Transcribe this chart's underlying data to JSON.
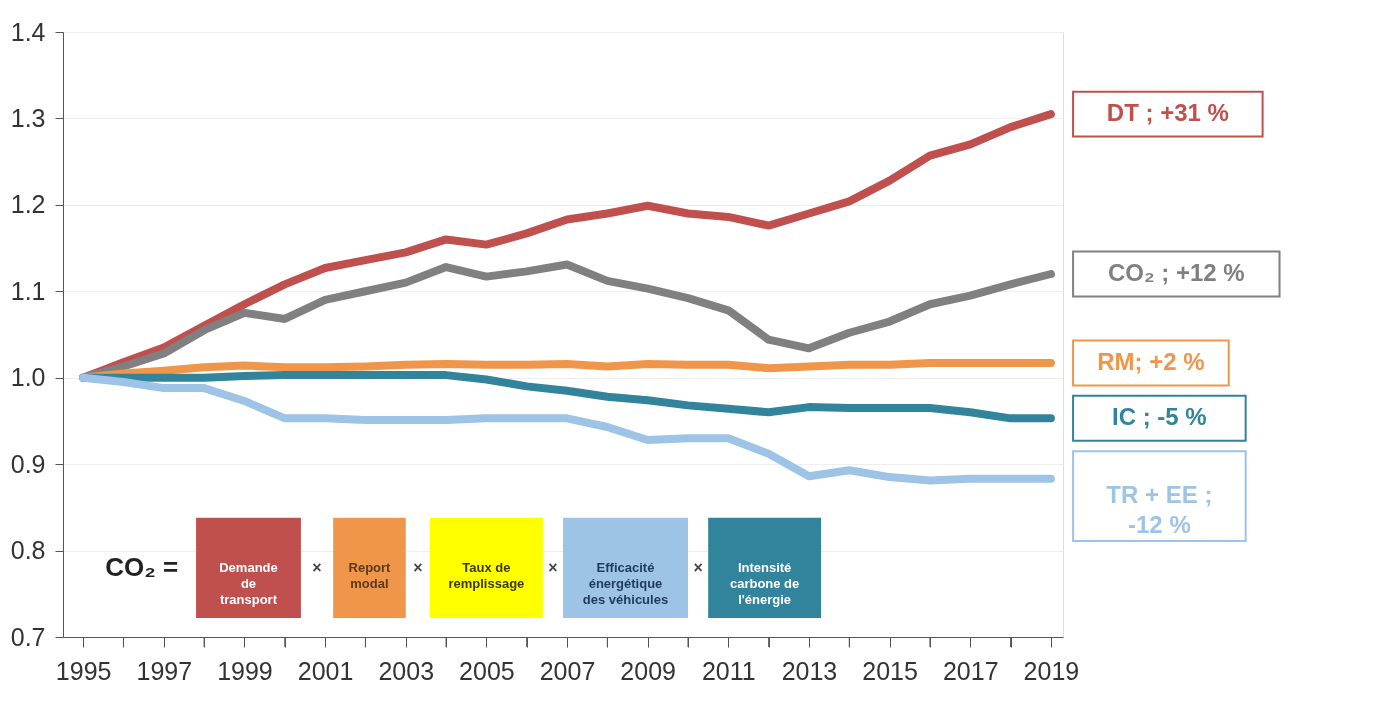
{
  "chart_data": {
    "type": "line",
    "x": [
      1995,
      1996,
      1997,
      1998,
      1999,
      2000,
      2001,
      2002,
      2003,
      2004,
      2005,
      2006,
      2007,
      2008,
      2009,
      2010,
      2011,
      2012,
      2013,
      2014,
      2015,
      2016,
      2017,
      2018,
      2019
    ],
    "series": [
      {
        "name": "DT ; +31 %",
        "color": "#c0504d",
        "values": [
          1.0,
          1.018,
          1.035,
          1.06,
          1.085,
          1.108,
          1.127,
          1.136,
          1.145,
          1.16,
          1.154,
          1.167,
          1.183,
          1.19,
          1.199,
          1.19,
          1.186,
          1.176,
          1.19,
          1.204,
          1.228,
          1.257,
          1.27,
          1.29,
          1.305
        ]
      },
      {
        "name": "CO₂ ; +12 %",
        "color": "#808080",
        "values": [
          1.0,
          1.013,
          1.028,
          1.055,
          1.075,
          1.068,
          1.09,
          1.1,
          1.11,
          1.128,
          1.117,
          1.123,
          1.131,
          1.112,
          1.103,
          1.092,
          1.078,
          1.044,
          1.034,
          1.052,
          1.065,
          1.085,
          1.095,
          1.108,
          1.12
        ]
      },
      {
        "name": "RM; +2 %",
        "color": "#f0964a",
        "values": [
          1.0,
          1.005,
          1.008,
          1.012,
          1.014,
          1.012,
          1.012,
          1.013,
          1.015,
          1.016,
          1.015,
          1.015,
          1.016,
          1.013,
          1.016,
          1.015,
          1.015,
          1.011,
          1.013,
          1.015,
          1.015,
          1.017,
          1.017,
          1.017,
          1.017
        ]
      },
      {
        "name": "IC ; -5 %",
        "color": "#31849b",
        "values": [
          1.0,
          1.0,
          1.0,
          1.0,
          1.002,
          1.003,
          1.003,
          1.003,
          1.003,
          1.003,
          0.998,
          0.99,
          0.985,
          0.978,
          0.974,
          0.968,
          0.964,
          0.96,
          0.966,
          0.965,
          0.965,
          0.965,
          0.96,
          0.953,
          0.953
        ]
      },
      {
        "name": "TR + EE ;\n-12 %",
        "color": "#9dc3e6",
        "values": [
          1.0,
          0.995,
          0.988,
          0.988,
          0.973,
          0.953,
          0.953,
          0.951,
          0.951,
          0.951,
          0.953,
          0.953,
          0.953,
          0.943,
          0.928,
          0.93,
          0.93,
          0.912,
          0.886,
          0.893,
          0.885,
          0.881,
          0.883,
          0.883,
          0.883
        ]
      }
    ],
    "xlim": [
      1994.5,
      2019.3
    ],
    "xticks": [
      1995,
      {
        "value": 1996,
        "label": null
      },
      1997,
      {
        "value": 1998,
        "label": null
      },
      1999,
      {
        "value": 2000,
        "label": null
      },
      2001,
      {
        "value": 2002,
        "label": null
      },
      2003,
      {
        "value": 2004,
        "label": null
      },
      2005,
      {
        "value": 2006,
        "label": null
      },
      2007,
      {
        "value": 2008,
        "label": null
      },
      2009,
      {
        "value": 2010,
        "label": null
      },
      2011,
      {
        "value": 2012,
        "label": null
      },
      2013,
      {
        "value": 2014,
        "label": null
      },
      2015,
      {
        "value": 2016,
        "label": null
      },
      2017,
      {
        "value": 2018,
        "label": null
      },
      2019
    ],
    "ylim": [
      0.7,
      1.4
    ],
    "yticks": [
      {
        "value": 0.7,
        "label": "0.7"
      },
      {
        "value": 0.8,
        "label": "0.8"
      },
      {
        "value": 0.9,
        "label": "0.9"
      },
      {
        "value": 1.0,
        "label": "1.0"
      },
      {
        "value": 1.1,
        "label": "1.1"
      },
      {
        "value": 1.2,
        "label": "1.2"
      },
      {
        "value": 1.3,
        "label": "1.3"
      },
      {
        "value": 1.4,
        "label": "1.4"
      }
    ],
    "grid": "y",
    "legend": false,
    "marker": "none",
    "line_style": "solid",
    "annotations": [
      "CO₂ =",
      "Demande\nde\ntransport",
      "×",
      "Report\nmodal",
      "×",
      "Taux de\nremplissage",
      "×",
      "Efficacité\nénergétique\ndes véhicules",
      "×",
      "Intensité\ncarbone de\nl'énergie"
    ]
  }
}
